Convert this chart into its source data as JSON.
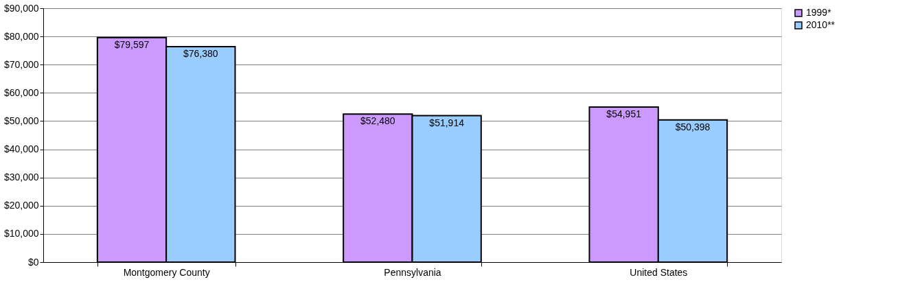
{
  "chart_data": {
    "type": "bar",
    "categories": [
      "Montgomery County",
      "Pennsylvania",
      "United States"
    ],
    "series": [
      {
        "name": "1999*",
        "color": "#cc99ff",
        "values": [
          79597,
          52480,
          54951
        ],
        "value_labels": [
          "$79,597",
          "$52,480",
          "$54,951"
        ]
      },
      {
        "name": "2010**",
        "color": "#99ccff",
        "values": [
          76380,
          51914,
          50398
        ],
        "value_labels": [
          "$76,380",
          "$51,914",
          "$50,398"
        ]
      }
    ],
    "ylim": [
      0,
      90000
    ],
    "yticks": [
      {
        "value": 0,
        "label": "$0"
      },
      {
        "value": 10000,
        "label": "$10,000"
      },
      {
        "value": 20000,
        "label": "$20,000"
      },
      {
        "value": 30000,
        "label": "$30,000"
      },
      {
        "value": 40000,
        "label": "$40,000"
      },
      {
        "value": 50000,
        "label": "$50,000"
      },
      {
        "value": 60000,
        "label": "$60,000"
      },
      {
        "value": 70000,
        "label": "$70,000"
      },
      {
        "value": 80000,
        "label": "$80,000"
      },
      {
        "value": 90000,
        "label": "$90,000"
      }
    ],
    "grid": "y",
    "legend": "right"
  }
}
